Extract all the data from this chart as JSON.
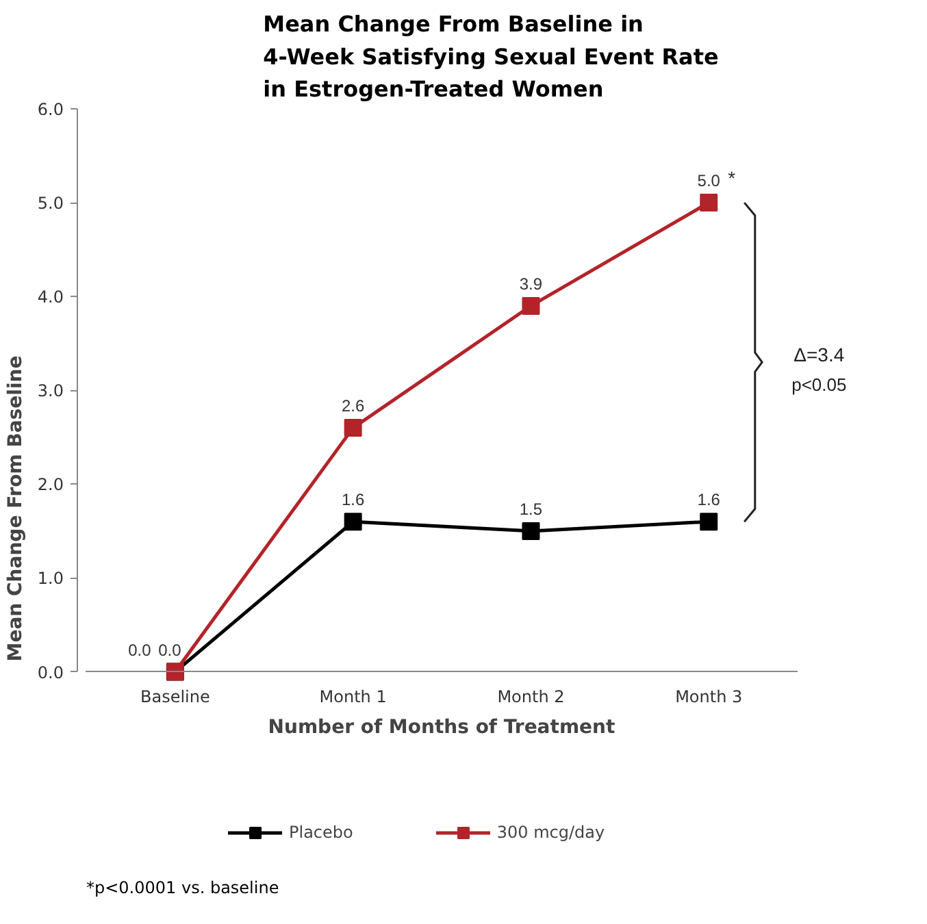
{
  "chart_data": {
    "type": "line",
    "title": "Mean Change From Baseline in\n4-Week Satisfying Sexual Event Rate\nin Estrogen-Treated Women",
    "xlabel": "Number of Months of Treatment",
    "ylabel": "Mean Change From Baseline",
    "categories": [
      "Baseline",
      "Month 1",
      "Month 2",
      "Month 3"
    ],
    "series": [
      {
        "name": "Placebo",
        "color": "#000000",
        "values": [
          0.0,
          1.6,
          1.5,
          1.6
        ],
        "value_labels": [
          "0.0",
          "1.6",
          "1.5",
          "1.6"
        ]
      },
      {
        "name": "300 mcg/day",
        "color": "#b3242a",
        "values": [
          0.0,
          2.6,
          3.9,
          5.0
        ],
        "value_labels": [
          "0.0",
          "2.6",
          "3.9",
          "5.0"
        ]
      }
    ],
    "ylim": [
      0,
      6
    ],
    "yticks": [
      {
        "value": 0,
        "label": "0.0"
      },
      {
        "value": 1,
        "label": "1.0"
      },
      {
        "value": 2,
        "label": "2.0"
      },
      {
        "value": 3,
        "label": "3.0"
      },
      {
        "value": 4,
        "label": "4.0"
      },
      {
        "value": 5,
        "label": "5.0"
      },
      {
        "value": 6,
        "label": "6.0"
      }
    ],
    "marker": "square",
    "line_style": "solid",
    "grid": false,
    "legend": "bottom",
    "annotations": [
      {
        "text": "*",
        "x": "Month 3",
        "y": 5.0
      },
      "Δ=3.4",
      "p<0.05",
      "*p<0.0001 vs. baseline"
    ]
  }
}
